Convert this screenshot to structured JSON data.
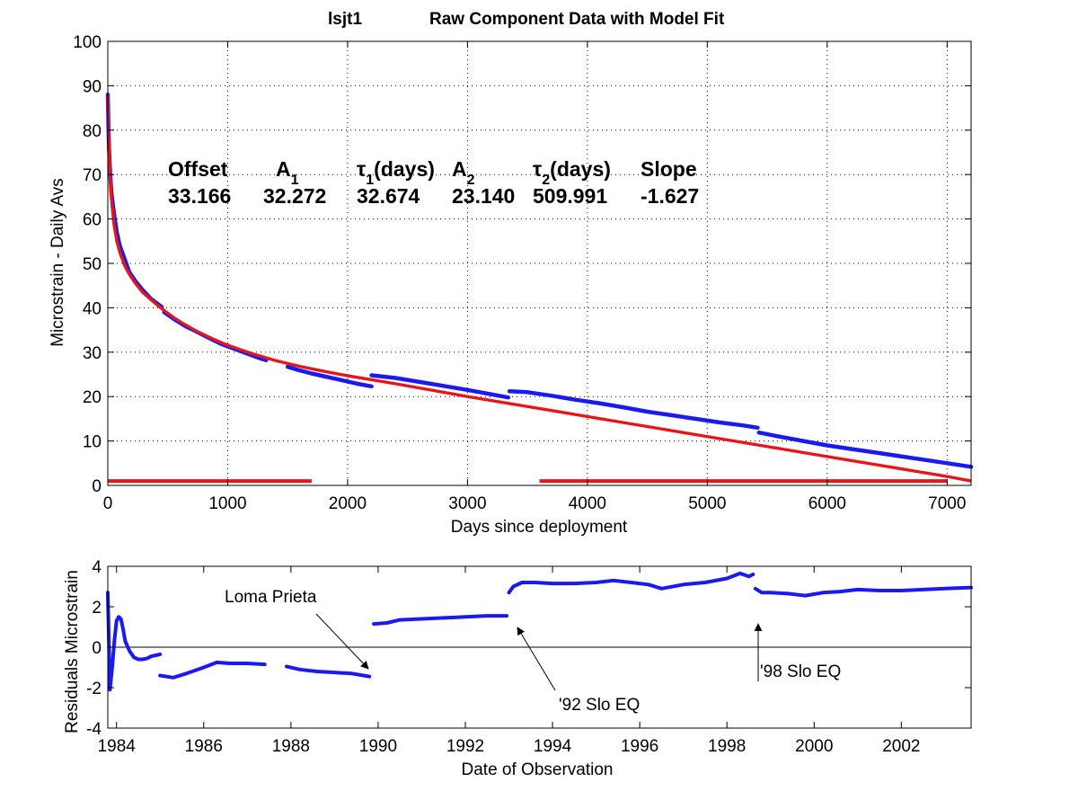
{
  "title": {
    "station": "lsjt1",
    "text": "Raw Component Data with Model Fit"
  },
  "chart_data": [
    {
      "type": "line",
      "xlabel": "Days since deployment",
      "ylabel": "Microstrain - Daily Avs",
      "xlim": [
        0,
        7200
      ],
      "ylim": [
        0,
        100
      ],
      "xticks": [
        0,
        1000,
        2000,
        3000,
        4000,
        5000,
        6000,
        7000
      ],
      "yticks": [
        0,
        10,
        20,
        30,
        40,
        50,
        60,
        70,
        80,
        90,
        100
      ],
      "grid": true,
      "colors": {
        "data": "#1a1af0",
        "fit": "#e8161b"
      },
      "params": {
        "headers": [
          "Offset",
          "A1",
          "τ1(days)",
          "A2",
          "τ2(days)",
          "Slope"
        ],
        "values": [
          "33.166",
          "32.272",
          "32.674",
          "23.140",
          "509.991",
          "-1.627"
        ]
      },
      "series": [
        {
          "kind": "data",
          "style": "dots",
          "segments": [
            {
              "x": [
                0,
                5,
                10,
                20,
                30,
                50,
                75,
                100,
                140,
                180,
                230,
                290,
                360,
                450
              ],
              "y": [
                88,
                81,
                76,
                70,
                66,
                61.5,
                57,
                54,
                51,
                48,
                46,
                44,
                42,
                40.2
              ]
            },
            {
              "x": [
                470,
                550,
                650,
                750,
                850,
                950,
                1050,
                1150,
                1250,
                1320
              ],
              "y": [
                39,
                37.5,
                35.8,
                34.5,
                33.1,
                31.8,
                30.8,
                29.8,
                28.8,
                28.2
              ]
            },
            {
              "x": [
                1500,
                1600,
                1700,
                1800,
                1900,
                2000,
                2100,
                2200
              ],
              "y": [
                26.7,
                25.9,
                25.2,
                24.6,
                24.0,
                23.4,
                22.8,
                22.3
              ]
            },
            {
              "x": [
                2200,
                2400,
                2600,
                2800,
                3000,
                3200,
                3340
              ],
              "y": [
                24.8,
                24.2,
                23.3,
                22.4,
                21.5,
                20.5,
                19.8
              ]
            },
            {
              "x": [
                3350,
                3500,
                3700,
                3900,
                4100,
                4300,
                4500,
                4700,
                4900,
                5100,
                5300,
                5420
              ],
              "y": [
                21.2,
                21.0,
                20.2,
                19.3,
                18.5,
                17.6,
                16.6,
                15.8,
                15.0,
                14.2,
                13.5,
                13.0
              ]
            },
            {
              "x": [
                5430,
                5600,
                5800,
                6000,
                6200,
                6400,
                6600,
                6800,
                7000,
                7200
              ],
              "y": [
                11.9,
                11.0,
                10.0,
                9.0,
                8.2,
                7.4,
                6.6,
                5.8,
                5.0,
                4.2
              ]
            }
          ]
        },
        {
          "kind": "fit",
          "style": "line",
          "segments": [
            {
              "x": [
                0,
                5,
                10,
                20,
                30,
                50,
                75,
                100,
                140,
                180,
                230,
                290,
                360,
                450,
                550,
                650,
                750,
                850,
                950,
                1050,
                1200,
                1400,
                1600,
                1800,
                2000,
                2400,
                3000,
                4000,
                5000,
                6000,
                7000,
                7200
              ],
              "y": [
                88,
                81,
                75.5,
                69,
                64.5,
                59,
                55,
                52.5,
                49.5,
                47.5,
                45.5,
                43.5,
                41.8,
                39.8,
                37.8,
                36.1,
                34.6,
                33.3,
                32.1,
                31.1,
                29.7,
                28.1,
                26.8,
                25.7,
                24.7,
                22.9,
                20.0,
                15.5,
                11.0,
                6.5,
                2.0,
                1.0
              ]
            }
          ]
        },
        {
          "kind": "fit-flag",
          "style": "line",
          "segments": [
            {
              "x": [
                0,
                1700
              ],
              "y": [
                1,
                1
              ]
            },
            {
              "x": [
                3600,
                7000
              ],
              "y": [
                1,
                1
              ]
            }
          ]
        }
      ]
    },
    {
      "type": "scatter",
      "xlabel": "Date of Observation",
      "ylabel": "Residuals Microstrain",
      "xlim": [
        1983.8,
        2003.6
      ],
      "ylim": [
        -4,
        4
      ],
      "xticks": [
        1984,
        1986,
        1988,
        1990,
        1992,
        1994,
        1996,
        1998,
        2000,
        2002
      ],
      "xtick_labels": [
        "1984",
        "1986",
        "1988",
        "1990",
        "1992",
        "1994",
        "1996",
        "1998",
        "2000",
        "2002"
      ],
      "yticks": [
        -4,
        -2,
        0,
        2,
        4
      ],
      "zero_line": true,
      "colors": {
        "data": "#1a1af0"
      },
      "series": [
        {
          "kind": "residuals",
          "segments": [
            {
              "x": [
                1983.8,
                1983.85,
                1983.9,
                1983.95,
                1984.0,
                1984.05,
                1984.1,
                1984.15,
                1984.2,
                1984.3,
                1984.4,
                1984.5,
                1984.6,
                1984.7,
                1984.8,
                1984.9,
                1985.0
              ],
              "y": [
                2.7,
                -2.1,
                -1.0,
                0.3,
                1.3,
                1.5,
                1.4,
                0.9,
                0.3,
                -0.2,
                -0.5,
                -0.6,
                -0.6,
                -0.55,
                -0.45,
                -0.4,
                -0.35
              ]
            },
            {
              "x": [
                1985.0,
                1985.3,
                1985.6,
                1986.0,
                1986.3,
                1986.6,
                1987.0,
                1987.4
              ],
              "y": [
                -1.4,
                -1.5,
                -1.3,
                -1.0,
                -0.75,
                -0.8,
                -0.8,
                -0.85
              ]
            },
            {
              "x": [
                1987.9,
                1988.2,
                1988.6,
                1989.0,
                1989.4,
                1989.8
              ],
              "y": [
                -0.95,
                -1.1,
                -1.2,
                -1.25,
                -1.3,
                -1.45
              ]
            },
            {
              "x": [
                1989.9,
                1990.2,
                1990.5,
                1991.0,
                1991.5,
                1992.0,
                1992.5,
                1992.95
              ],
              "y": [
                1.15,
                1.2,
                1.35,
                1.4,
                1.45,
                1.5,
                1.55,
                1.55
              ]
            },
            {
              "x": [
                1993.0,
                1993.1,
                1993.3,
                1993.6,
                1994.0,
                1994.5,
                1995.0,
                1995.4,
                1995.8,
                1996.2,
                1996.5,
                1997.0,
                1997.5,
                1998.0,
                1998.3,
                1998.5,
                1998.6
              ],
              "y": [
                2.7,
                3.0,
                3.2,
                3.2,
                3.15,
                3.15,
                3.2,
                3.3,
                3.2,
                3.1,
                2.9,
                3.1,
                3.2,
                3.4,
                3.65,
                3.5,
                3.6
              ]
            },
            {
              "x": [
                1998.65,
                1998.8,
                1999.0,
                1999.4,
                1999.8,
                2000.2,
                2000.6,
                2001.0,
                2001.5,
                2002.0,
                2002.5,
                2003.0,
                2003.6
              ],
              "y": [
                2.9,
                2.7,
                2.7,
                2.65,
                2.55,
                2.7,
                2.75,
                2.85,
                2.8,
                2.8,
                2.85,
                2.9,
                2.95
              ]
            }
          ]
        }
      ],
      "annotations": [
        {
          "text": "Loma Prieta"
        },
        {
          "text": "'92 Slo EQ"
        },
        {
          "text": "'98 Slo EQ"
        }
      ]
    }
  ]
}
